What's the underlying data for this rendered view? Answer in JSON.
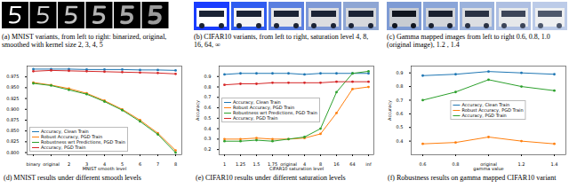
{
  "panels": [
    {
      "caption": "(a) MNIST variants, from left to right: binarized, original, smoothed with kernel size 2, 3, 4, 5"
    },
    {
      "caption": "(b) CIFAR10 variants, from left to right, saturation level 4, 8, 16, 64, ∞"
    },
    {
      "caption": "(c) Gamma mapped images from left to right 0.6, 0.8, 1.0 (original image), 1.2 , 1.4"
    }
  ],
  "chart_data": [
    {
      "type": "line",
      "caption": "(d) MNIST results under different smooth levels",
      "x_label": "MNIST smooth level",
      "categories": [
        "binary",
        "original",
        "2",
        "3",
        "4",
        "5",
        "6",
        "7",
        "8"
      ],
      "ylim": [
        0.795,
        1.0
      ],
      "yticks": [
        {
          "value": 0.8,
          "label": "0.800"
        },
        0.825,
        {
          "value": 0.85,
          "label": "0.850"
        },
        0.875,
        {
          "value": 0.9,
          "label": "0.900"
        },
        0.925,
        {
          "value": 0.95,
          "label": "0.950"
        },
        0.975
      ],
      "grid": false,
      "legend": "lower left",
      "series": [
        {
          "name": "Accuracy, Clean Train",
          "color": "#1f77b4",
          "marker": "circle",
          "values": [
            0.993,
            0.993,
            0.993,
            0.992,
            0.992,
            0.992,
            0.991,
            0.991,
            0.99
          ]
        },
        {
          "name": "Robust Accuracy, PGD Train",
          "color": "#ff7f0e",
          "marker": "circle",
          "values": [
            0.962,
            0.956,
            0.948,
            0.937,
            0.92,
            0.9,
            0.875,
            0.845,
            0.805
          ]
        },
        {
          "name": "Robustness wrt Predictions, PGD Train",
          "color": "#2ca02c",
          "marker": "circle",
          "values": [
            0.96,
            0.955,
            0.945,
            0.935,
            0.918,
            0.898,
            0.872,
            0.842,
            0.8
          ]
        },
        {
          "name": "Accuracy, PGD Train",
          "color": "#d62728",
          "marker": "circle",
          "values": [
            0.988,
            0.99,
            0.989,
            0.988,
            0.987,
            0.986,
            0.985,
            0.984,
            0.982
          ]
        }
      ]
    },
    {
      "type": "line",
      "caption": "(e) CIFAR10 results under different saturation levels",
      "x_label": "CIFAR10 saturation level",
      "y_label": "Accuracy",
      "categories": [
        "1",
        "1.25",
        "1.5",
        "1.75",
        "original",
        "4",
        "8",
        "16",
        "64",
        "inf"
      ],
      "ylim": [
        0.15,
        1.0
      ],
      "yticks": [
        0.2,
        0.3,
        0.4,
        0.5,
        0.6,
        0.7,
        0.8,
        0.9
      ],
      "grid": false,
      "legend": "left",
      "series": [
        {
          "name": "Accuracy, Clean Train",
          "color": "#1f77b4",
          "marker": "circle",
          "values": [
            0.92,
            0.93,
            0.93,
            0.93,
            0.93,
            0.92,
            0.93,
            0.93,
            0.93,
            0.93
          ]
        },
        {
          "name": "Robust Accuracy, PGD Train",
          "color": "#ff7f0e",
          "marker": "circle",
          "values": [
            0.3,
            0.3,
            0.31,
            0.3,
            0.3,
            0.31,
            0.35,
            0.55,
            0.78,
            0.8
          ]
        },
        {
          "name": "Robustness wrt Predictions, PGD Train",
          "color": "#2ca02c",
          "marker": "circle",
          "values": [
            0.28,
            0.28,
            0.29,
            0.28,
            0.3,
            0.32,
            0.4,
            0.75,
            0.93,
            0.95
          ]
        },
        {
          "name": "Accuracy, PGD Train",
          "color": "#d62728",
          "marker": "circle",
          "values": [
            0.82,
            0.83,
            0.83,
            0.84,
            0.84,
            0.84,
            0.84,
            0.85,
            0.85,
            0.85
          ]
        }
      ]
    },
    {
      "type": "line",
      "caption": "(f) Robustness results on gamma mapped CIFAR10 variant",
      "x_label": "gamma value",
      "y_label": "Accuracy",
      "categories": [
        "0.6",
        "0.8",
        "original",
        "1.2",
        "1.4"
      ],
      "ylim": [
        0.3,
        0.95
      ],
      "yticks": [
        0.4,
        0.5,
        0.6,
        0.7,
        0.8,
        0.9
      ],
      "grid": false,
      "legend": "center",
      "series": [
        {
          "name": "Accuracy, Clean Train",
          "color": "#1f77b4",
          "marker": "circle",
          "values": [
            0.88,
            0.89,
            0.91,
            0.9,
            0.89
          ]
        },
        {
          "name": "Robust Accuracy, PGD Train",
          "color": "#ff7f0e",
          "marker": "circle",
          "values": [
            0.38,
            0.39,
            0.43,
            0.4,
            0.38
          ]
        },
        {
          "name": "Accuracy, PGD Train",
          "color": "#2ca02c",
          "marker": "circle",
          "values": [
            0.7,
            0.76,
            0.85,
            0.8,
            0.77
          ]
        }
      ]
    }
  ]
}
